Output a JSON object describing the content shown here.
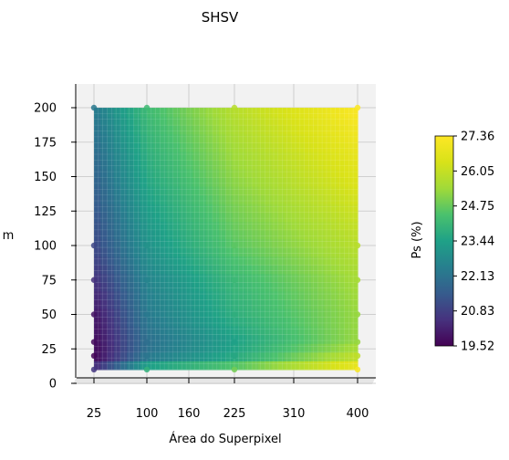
{
  "chart_data": {
    "type": "heatmap",
    "title": "SHSV",
    "xlabel": "Área do Superpixel",
    "ylabel": "m",
    "colorbar_label": "Ps (%)",
    "x_ticks": [
      25,
      100,
      160,
      225,
      310,
      400
    ],
    "y_ticks": [
      0,
      25,
      50,
      75,
      100,
      125,
      150,
      175,
      200
    ],
    "colorbar_ticks": [
      "19.52",
      "20.83",
      "22.13",
      "23.44",
      "24.75",
      "26.05",
      "27.36"
    ],
    "xlim": [
      25,
      400
    ],
    "ylim": [
      10,
      200
    ],
    "clim": [
      19.52,
      27.36
    ],
    "colormap": "viridis",
    "x": [
      25,
      100,
      225,
      400
    ],
    "y": [
      10,
      20,
      30,
      50,
      75,
      100,
      200
    ],
    "z": [
      [
        20.6,
        23.9,
        24.9,
        27.2
      ],
      [
        19.6,
        22.2,
        23.6,
        25.9
      ],
      [
        19.7,
        22.0,
        23.4,
        25.3
      ],
      [
        19.9,
        22.3,
        23.8,
        25.3
      ],
      [
        20.5,
        22.6,
        24.1,
        25.5
      ],
      [
        21.0,
        23.0,
        24.6,
        25.8
      ],
      [
        22.3,
        24.2,
        25.8,
        27.3
      ]
    ]
  }
}
